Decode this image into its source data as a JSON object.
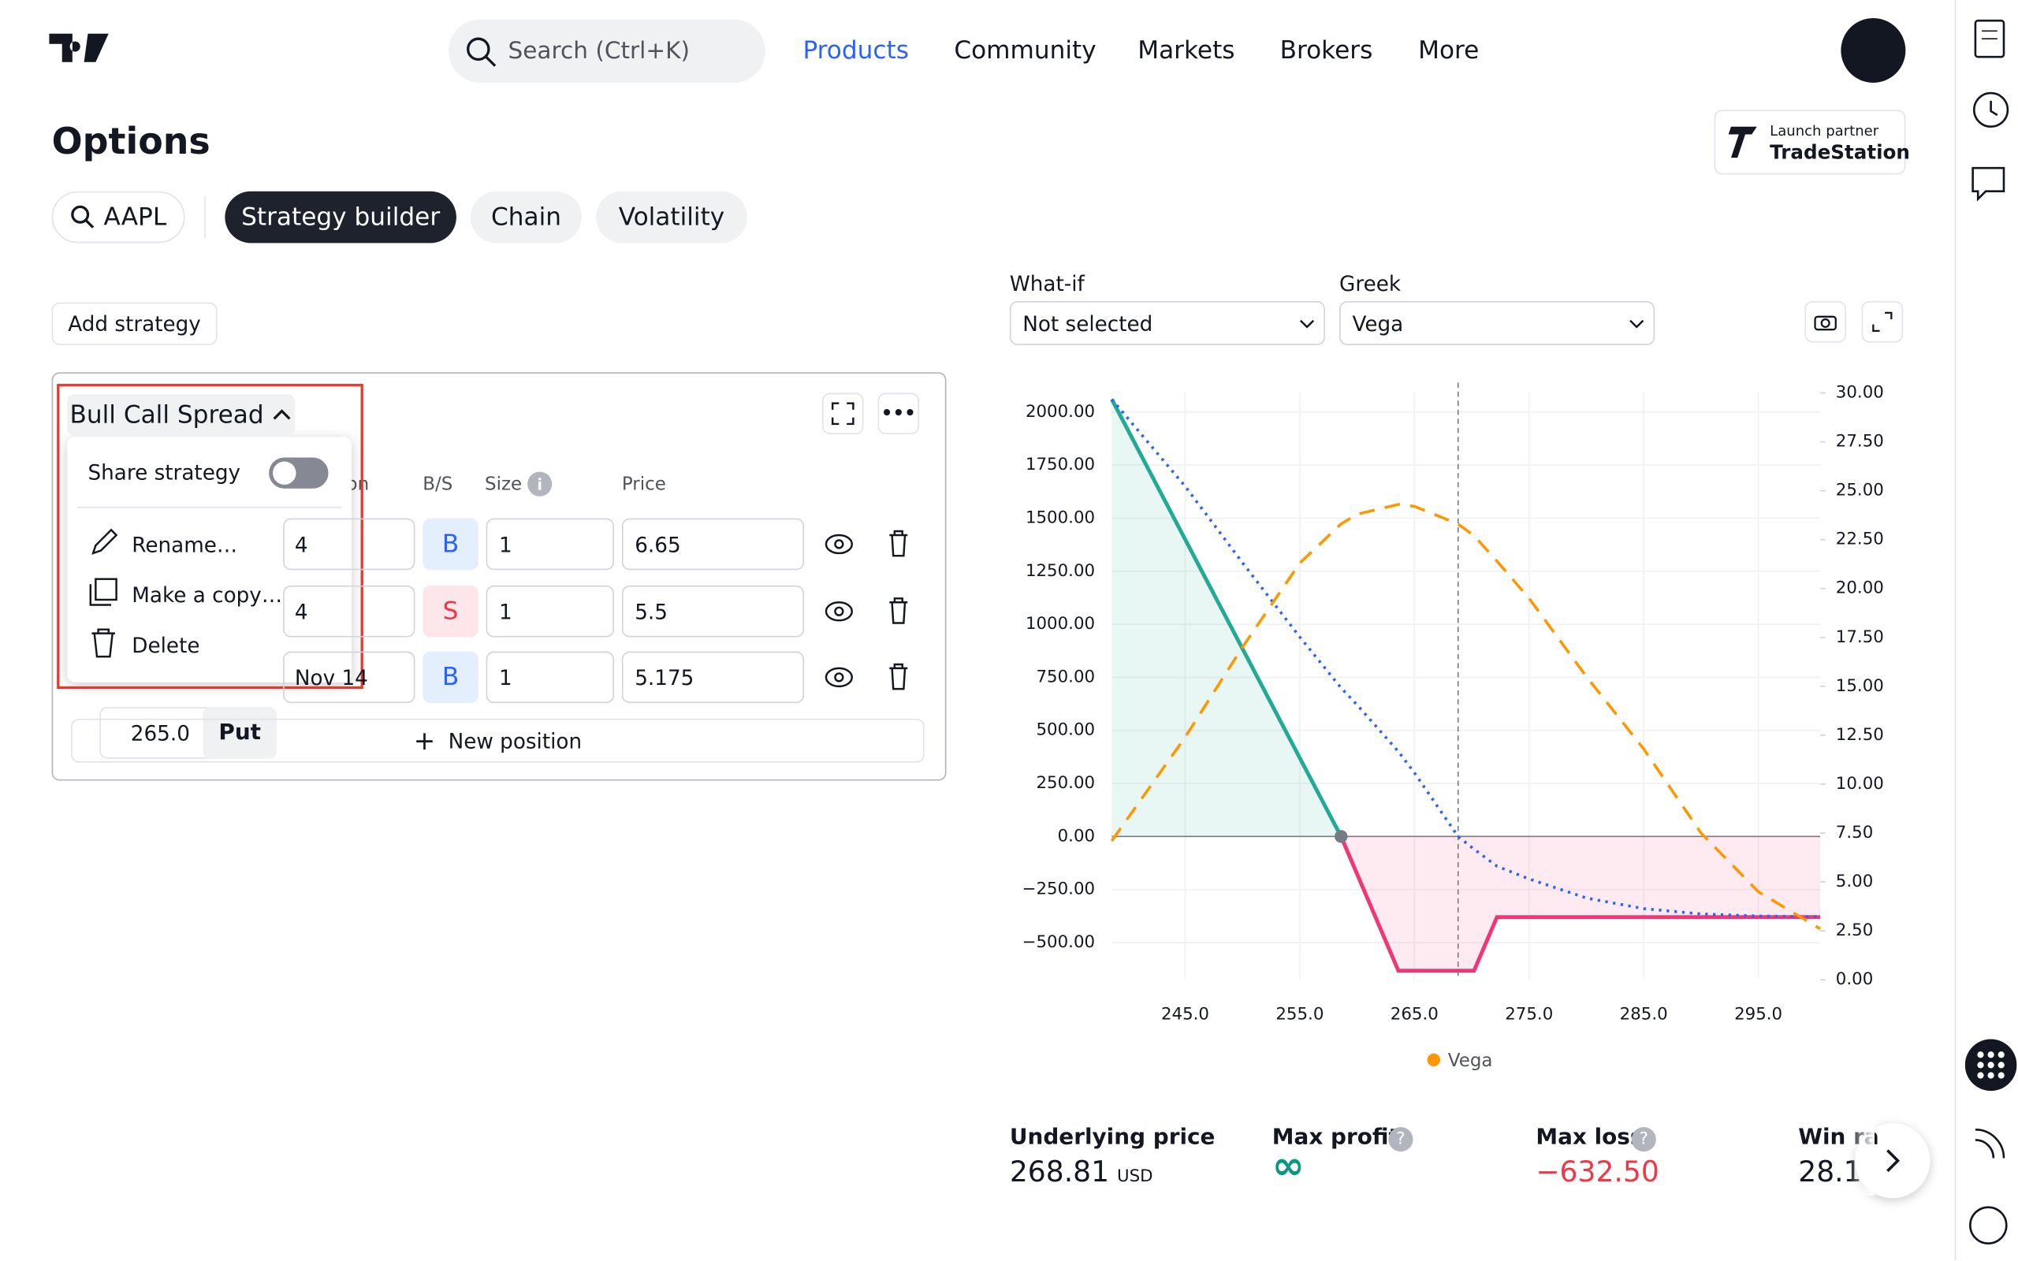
{
  "nav": {
    "search": "Search (Ctrl+K)",
    "links": [
      "Products",
      "Community",
      "Markets",
      "Brokers",
      "More"
    ]
  },
  "page": {
    "title": "Options",
    "partner_top": "Launch partner",
    "partner_name": "TradeStation",
    "tabs": [
      "AAPL",
      "Strategy builder",
      "Chain",
      "Volatility"
    ],
    "add_strategy": "Add strategy"
  },
  "strategy": {
    "name": "Bull Call Spread",
    "menu": {
      "share": "Share strategy",
      "items": [
        "Rename…",
        "Make a copy…",
        "Delete"
      ]
    },
    "columns": [
      "on",
      "B/S",
      "Size",
      "Price"
    ],
    "rows": [
      {
        "expiry": "4",
        "side": "B",
        "size": "1",
        "price": "6.65"
      },
      {
        "expiry": "4",
        "side": "S",
        "size": "1",
        "price": "5.5"
      },
      {
        "strike": "265.0",
        "type": "Put",
        "expiry": "Nov 14",
        "side": "B",
        "size": "1",
        "price": "5.175"
      }
    ],
    "new_position": "New position"
  },
  "controls": {
    "whatif_label": "What-if",
    "whatif_value": "Not selected",
    "greek_label": "Greek",
    "greek_value": "Vega"
  },
  "chart_data": {
    "type": "line",
    "x": [
      238.6,
      245,
      250,
      255,
      258.6,
      260,
      263.6,
      265,
      268.81,
      270.2,
      272.2,
      275,
      280,
      285,
      290,
      295,
      300.4
    ],
    "xlim": [
      238.6,
      300.4
    ],
    "ylim": [
      -675,
      2090
    ],
    "y2lim": [
      0,
      30
    ],
    "xticks": [
      {
        "value": 245,
        "label": "245.0"
      },
      {
        "value": 255,
        "label": "255.0"
      },
      {
        "value": 265,
        "label": "265.0"
      },
      {
        "value": 275,
        "label": "275.0"
      },
      {
        "value": 285,
        "label": "285.0"
      },
      {
        "value": 295,
        "label": "295.0"
      }
    ],
    "yticks": [
      {
        "value": 2000,
        "label": "2000.00"
      },
      {
        "value": 1750,
        "label": "1750.00"
      },
      {
        "value": 1500,
        "label": "1500.00"
      },
      {
        "value": 1250,
        "label": "1250.00"
      },
      {
        "value": 1000,
        "label": "1000.00"
      },
      {
        "value": 750,
        "label": "750.00"
      },
      {
        "value": 500,
        "label": "500.00"
      },
      {
        "value": 250,
        "label": "250.00"
      },
      {
        "value": 0,
        "label": "0.00"
      },
      {
        "value": -250,
        "label": "−250.00"
      },
      {
        "value": -500,
        "label": "−500.00"
      }
    ],
    "y2ticks": [
      {
        "value": 30,
        "label": "30.00"
      },
      {
        "value": 27.5,
        "label": "27.50"
      },
      {
        "value": 25,
        "label": "25.00"
      },
      {
        "value": 22.5,
        "label": "22.50"
      },
      {
        "value": 20,
        "label": "20.00"
      },
      {
        "value": 17.5,
        "label": "17.50"
      },
      {
        "value": 15,
        "label": "15.00"
      },
      {
        "value": 12.5,
        "label": "12.50"
      },
      {
        "value": 10,
        "label": "10.00"
      },
      {
        "value": 7.5,
        "label": "7.50"
      },
      {
        "value": 5,
        "label": "5.00"
      },
      {
        "value": 2.5,
        "label": "2.50"
      },
      {
        "value": 0,
        "label": "0.00"
      }
    ],
    "grid": true,
    "series": [
      {
        "color": "#22ab94",
        "negative_color": "#f23674",
        "fill": true,
        "values": [
          2060,
          1400,
          885,
          370,
          0,
          -177,
          -632.5,
          -632.5,
          -632.5,
          -632.5,
          -380,
          -380,
          -380,
          -380,
          -380,
          -380,
          -380
        ]
      },
      {
        "color": "#2962ff",
        "dash": "dotted",
        "values": [
          2060,
          1650,
          1290,
          940,
          700,
          620,
          400,
          300,
          0,
          -60,
          -140,
          -200,
          -290,
          -340,
          -365,
          -375,
          -378
        ]
      },
      {
        "name": "Vega",
        "color": "#ff9800",
        "dash": "dashed",
        "axis": "y2",
        "values": [
          7.1,
          12.4,
          17,
          21.3,
          23.3,
          23.8,
          24.3,
          24.2,
          23.3,
          22.7,
          21.4,
          19.5,
          15.5,
          11.8,
          7.5,
          4.5,
          2.6
        ]
      }
    ]
  },
  "stats": [
    {
      "label": "Underlying price",
      "value": "268.81",
      "unit": "USD"
    },
    {
      "label": "Max profit",
      "value": "∞"
    },
    {
      "label": "Max loss",
      "value": "−632.50"
    },
    {
      "label": "Win ra",
      "value": "28.1"
    }
  ]
}
